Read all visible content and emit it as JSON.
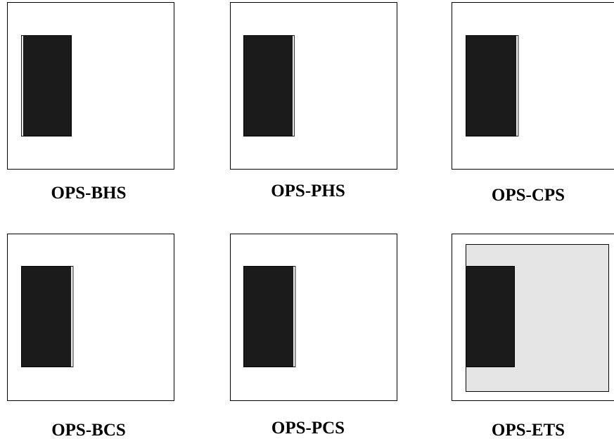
{
  "panels": [
    {
      "label": "OPS-BHS"
    },
    {
      "label": "OPS-PHS"
    },
    {
      "label": "OPS-CPS"
    },
    {
      "label": "OPS-BCS"
    },
    {
      "label": "OPS-PCS"
    },
    {
      "label": "OPS-ETS"
    }
  ]
}
